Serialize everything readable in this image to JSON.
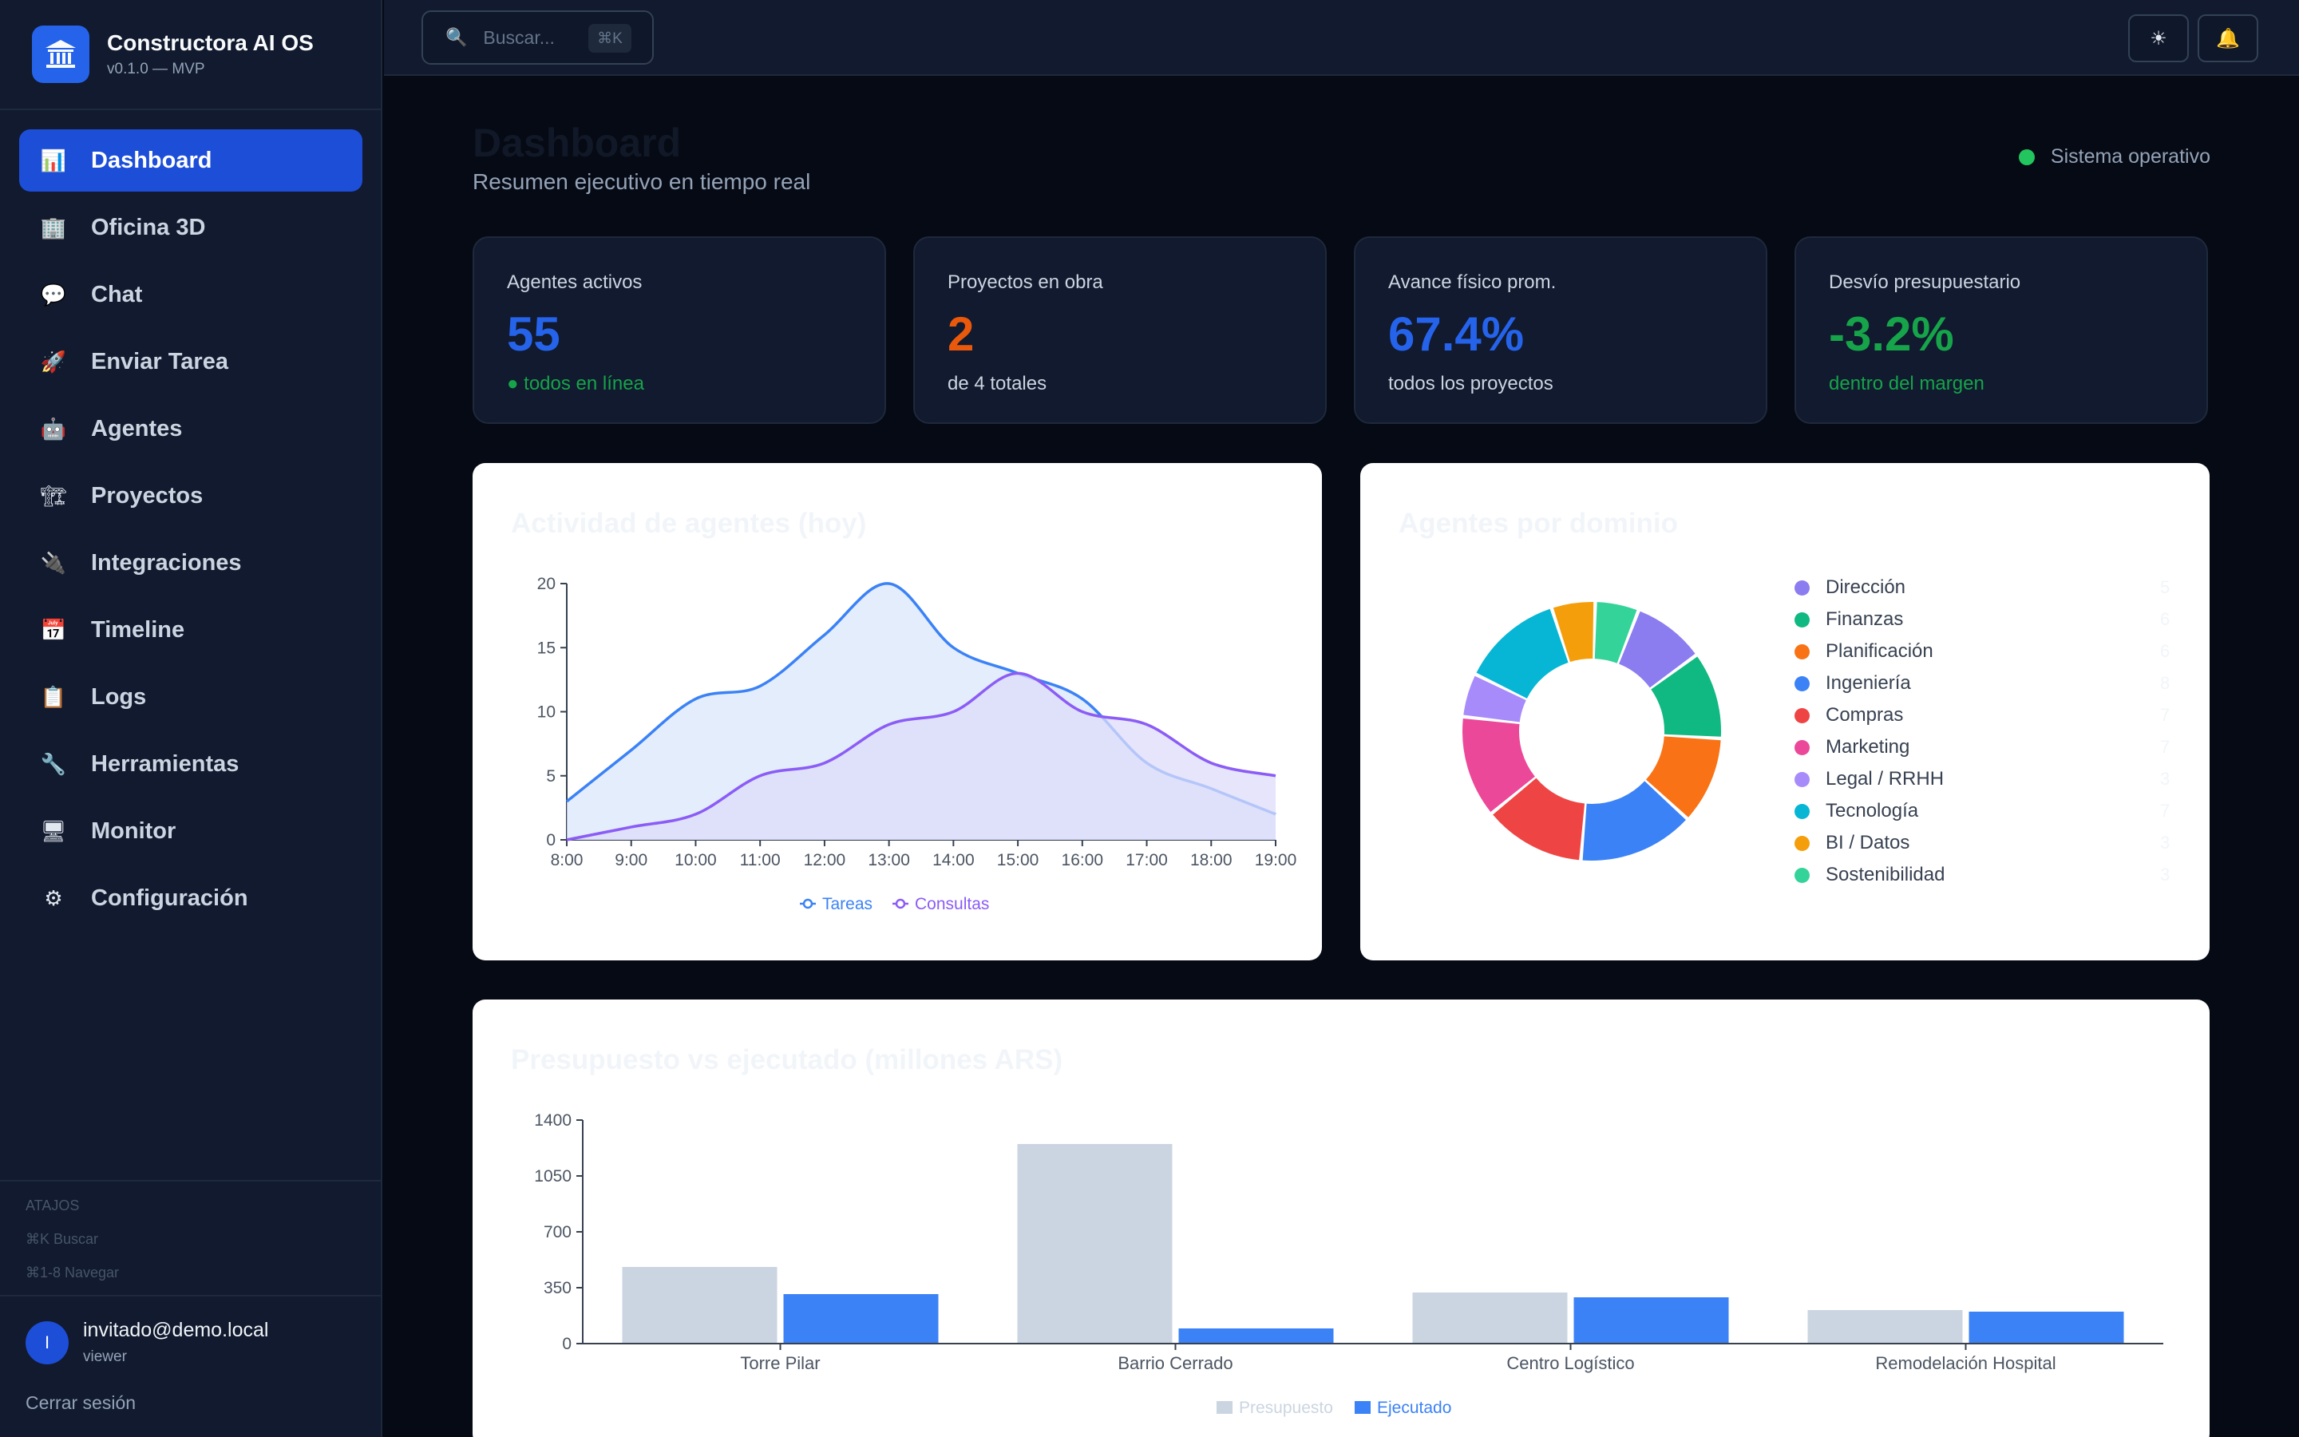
{
  "app": {
    "title": "Constructora AI OS",
    "version": "v0.1.0 — MVP"
  },
  "sidebar": {
    "items": [
      {
        "label": "Dashboard",
        "icon": "bar-chart-icon",
        "glyph": "📊"
      },
      {
        "label": "Oficina 3D",
        "icon": "office-building-icon",
        "glyph": "🏢"
      },
      {
        "label": "Chat",
        "icon": "speech-bubble-icon",
        "glyph": "💬"
      },
      {
        "label": "Enviar Tarea",
        "icon": "rocket-icon",
        "glyph": "🚀"
      },
      {
        "label": "Agentes",
        "icon": "robot-icon",
        "glyph": "🤖"
      },
      {
        "label": "Proyectos",
        "icon": "crane-icon",
        "glyph": "🏗"
      },
      {
        "label": "Integraciones",
        "icon": "plug-icon",
        "glyph": "🔌"
      },
      {
        "label": "Timeline",
        "icon": "calendar-icon",
        "glyph": "📅"
      },
      {
        "label": "Logs",
        "icon": "clipboard-icon",
        "glyph": "📋"
      },
      {
        "label": "Herramientas",
        "icon": "wrench-icon",
        "glyph": "🔧"
      },
      {
        "label": "Monitor",
        "icon": "monitor-icon",
        "glyph": "🖥"
      },
      {
        "label": "Configuración",
        "icon": "gear-icon",
        "glyph": "⚙"
      }
    ],
    "shortcuts": {
      "title": "ATAJOS",
      "search": "⌘K Buscar",
      "navigate": "⌘1-8 Navegar"
    },
    "user": {
      "initial": "I",
      "email": "invitado@demo.local",
      "role": "viewer"
    },
    "logout": "Cerrar sesión"
  },
  "topbar": {
    "search_placeholder": "Buscar...",
    "search_shortcut": "⌘K",
    "theme_icon": "sun-icon",
    "theme_glyph": "☀",
    "notifications_icon": "bell-icon",
    "notifications_glyph": "🔔"
  },
  "header": {
    "title": "Dashboard",
    "subtitle": "Resumen ejecutivo en tiempo real",
    "status": "Sistema operativo"
  },
  "kpis": [
    {
      "label": "Agentes activos",
      "value": "55",
      "note": "● todos en línea",
      "value_color": "#2563eb",
      "note_color": "#16a34a"
    },
    {
      "label": "Proyectos en obra",
      "value": "2",
      "note": "de 4 totales",
      "value_color": "#ea580c",
      "note_color": "#cbd5e1"
    },
    {
      "label": "Avance físico prom.",
      "value": "67.4%",
      "note": "todos los proyectos",
      "value_color": "#2563eb",
      "note_color": "#cbd5e1"
    },
    {
      "label": "Desvío presupuestario",
      "value": "-3.2%",
      "note": "dentro del margen",
      "value_color": "#16a34a",
      "note_color": "#16a34a"
    }
  ],
  "charts": {
    "activity_title": "Actividad de agentes (hoy)",
    "domain_title": "Agentes por dominio",
    "budget_title": "Presupuesto vs ejecutado (millones ARS)"
  },
  "chart_data": [
    {
      "type": "area",
      "title": "Actividad de agentes (hoy)",
      "x": [
        "8:00",
        "9:00",
        "10:00",
        "11:00",
        "12:00",
        "13:00",
        "14:00",
        "15:00",
        "16:00",
        "17:00",
        "18:00",
        "19:00"
      ],
      "ylim": [
        0,
        20
      ],
      "yticks": [
        0,
        5,
        10,
        15,
        20
      ],
      "series": [
        {
          "name": "Tareas",
          "color": "#3b82f6",
          "fill": "#dbe7fb",
          "values": [
            3,
            7,
            11,
            12,
            16,
            20,
            15,
            13,
            11,
            6,
            4,
            2
          ]
        },
        {
          "name": "Consultas",
          "color": "#8b5cf6",
          "fill": "#dedcf9",
          "values": [
            0,
            1,
            2,
            5,
            6,
            9,
            10,
            13,
            10,
            9,
            6,
            5
          ]
        }
      ]
    },
    {
      "type": "pie",
      "title": "Agentes por dominio",
      "slices": [
        {
          "name": "Dirección",
          "value": 5,
          "color": "#8b7cf0"
        },
        {
          "name": "Finanzas",
          "value": 6,
          "color": "#10b981"
        },
        {
          "name": "Planificación",
          "value": 6,
          "color": "#f97316"
        },
        {
          "name": "Ingeniería",
          "value": 8,
          "color": "#3b82f6"
        },
        {
          "name": "Compras",
          "value": 7,
          "color": "#ef4444"
        },
        {
          "name": "Marketing",
          "value": 7,
          "color": "#ec4899"
        },
        {
          "name": "Legal / RRHH",
          "value": 3,
          "color": "#a78bfa"
        },
        {
          "name": "Tecnología",
          "value": 7,
          "color": "#06b6d4"
        },
        {
          "name": "BI / Datos",
          "value": 3,
          "color": "#f59e0b"
        },
        {
          "name": "Sostenibilidad",
          "value": 3,
          "color": "#34d399"
        }
      ]
    },
    {
      "type": "bar",
      "title": "Presupuesto vs ejecutado (millones ARS)",
      "categories": [
        "Torre Pilar",
        "Barrio Cerrado",
        "Centro Logístico",
        "Remodelación Hospital"
      ],
      "ylim": [
        0,
        1400
      ],
      "yticks": [
        0,
        350,
        700,
        1050,
        1400
      ],
      "series": [
        {
          "name": "Presupuesto",
          "color": "#cbd5e1",
          "values": [
            480,
            1250,
            320,
            210
          ]
        },
        {
          "name": "Ejecutado",
          "color": "#3b82f6",
          "values": [
            310,
            95,
            290,
            200
          ]
        }
      ]
    }
  ]
}
